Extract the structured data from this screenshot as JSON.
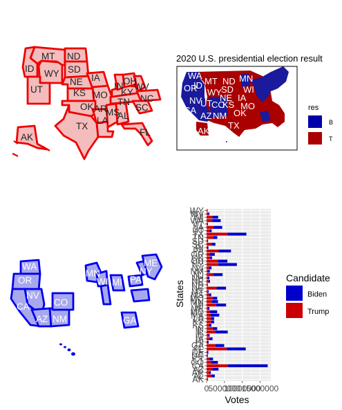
{
  "page": {
    "inset_title": "2020 U.S. presidential election result",
    "inset_legend_title": "res",
    "inset_legend_keys": [
      "B",
      "T"
    ],
    "colors": {
      "trump_fill": "#f4bcbc",
      "trump_line": "#ee0000",
      "biden_fill": "#a8a8ee",
      "biden_line": "#0000ee",
      "inset_blue": "#1a1a9c",
      "inset_red": "#aa0000",
      "bar_biden": "#0000cc",
      "bar_trump": "#cc0000",
      "panel_bg": "#ebebeb"
    },
    "trump_map": {
      "state_labels": [
        "MT",
        "ND",
        "SD",
        "ID",
        "WY",
        "UT",
        "NE",
        "IA",
        "KS",
        "MO",
        "OK",
        "AR",
        "TX",
        "LA",
        "MS",
        "AL",
        "IN",
        "OH",
        "KY",
        "WV",
        "TN",
        "NC",
        "SC",
        "FL",
        "AK"
      ]
    },
    "biden_map": {
      "state_labels": [
        "WA",
        "OR",
        "NV",
        "CA",
        "AZ",
        "NM",
        "CO",
        "MN",
        "WI",
        "MI",
        "PA",
        "NY",
        "ME",
        "GA"
      ]
    },
    "inset_map": {
      "state_labels": [
        "WA",
        "MT",
        "ND",
        "MN",
        "ID",
        "OR",
        "SD",
        "WY",
        "WI",
        "NV",
        "NE",
        "IA",
        "UT",
        "CO",
        "KS",
        "MO",
        "CA",
        "OK",
        "AZ",
        "NM",
        "TX",
        "AK"
      ]
    }
  },
  "chart_data": {
    "type": "bar",
    "orientation": "horizontal",
    "stacked": true,
    "xlabel": "Votes",
    "ylabel": "States",
    "x_tick_labels": [
      "0",
      "5000000",
      "10000000",
      "15000000"
    ],
    "xlim": [
      0,
      18000000
    ],
    "legend_title": "Candidate",
    "legend_position": "right",
    "grid": true,
    "categories": [
      "AK",
      "AL",
      "AR",
      "AZ",
      "CA",
      "CO",
      "CT",
      "DC",
      "DE",
      "FL",
      "GA",
      "HI",
      "IA",
      "ID",
      "IL",
      "IN",
      "KS",
      "KY",
      "LA",
      "MA",
      "MD",
      "ME",
      "MI",
      "MN",
      "MO",
      "MS",
      "MT",
      "NC",
      "ND",
      "NE",
      "NH",
      "NJ",
      "NM",
      "NV",
      "NY",
      "OH",
      "OK",
      "OR",
      "PA",
      "RI",
      "SC",
      "SD",
      "TN",
      "TX",
      "UT",
      "VA",
      "VT",
      "WA",
      "WI",
      "WV",
      "WY"
    ],
    "series": [
      {
        "name": "Biden",
        "color": "#0000cc",
        "values": [
          153778,
          849624,
          423932,
          1672143,
          11110250,
          1804352,
          1080831,
          317323,
          296268,
          5297045,
          2473633,
          366130,
          759061,
          287021,
          3471915,
          1242416,
          570323,
          772474,
          856034,
          2382202,
          1985023,
          435072,
          2804040,
          1717077,
          1253014,
          539398,
          244786,
          2684292,
          114902,
          374583,
          424937,
          2608335,
          501614,
          703486,
          5244886,
          2679165,
          503890,
          1340383,
          3458229,
          307486,
          1091541,
          150471,
          1143711,
          5259126,
          560282,
          2413568,
          242820,
          2369612,
          1630866,
          235984,
          73491
        ]
      },
      {
        "name": "Trump",
        "color": "#cc0000",
        "values": [
          189951,
          1441170,
          760647,
          1661686,
          6006429,
          1364607,
          714717,
          18586,
          200603,
          5668731,
          2461854,
          196864,
          897672,
          554119,
          2446891,
          1729519,
          771406,
          1326646,
          1255776,
          1167202,
          976414,
          360737,
          2649852,
          1484065,
          1718736,
          756764,
          343602,
          2758775,
          235595,
          556846,
          365660,
          1883274,
          401894,
          669890,
          3251997,
          3154834,
          1020280,
          958448,
          3377674,
          199922,
          1385103,
          261043,
          1852475,
          5890347,
          865140,
          1962430,
          112704,
          1584651,
          1610184,
          545382,
          193559
        ]
      }
    ]
  }
}
